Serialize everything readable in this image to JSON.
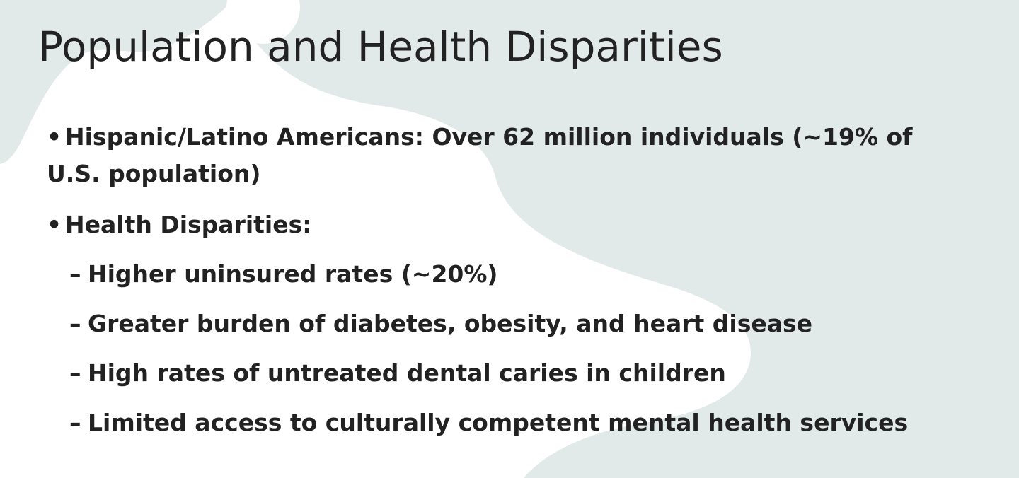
{
  "slide": {
    "title": "Population and Health Disparities",
    "bullets": [
      {
        "marker": "•",
        "text": "Hispanic/Latino Americans: Over 62 million individuals (~19% of U.S. population)"
      },
      {
        "marker": "•",
        "text": "Health Disparities:"
      }
    ],
    "sub_items": [
      {
        "marker": "–",
        "text": "Higher uninsured rates (~20%)"
      },
      {
        "marker": "–",
        "text": "Greater burden of diabetes, obesity, and heart disease"
      },
      {
        "marker": "–",
        "text": "High rates of untreated dental caries in children"
      },
      {
        "marker": "–",
        "text": "Limited access to culturally competent mental health services"
      }
    ]
  },
  "colors": {
    "background": "#ffffff",
    "shape_fill": "#e2eae9",
    "text": "#222222"
  }
}
